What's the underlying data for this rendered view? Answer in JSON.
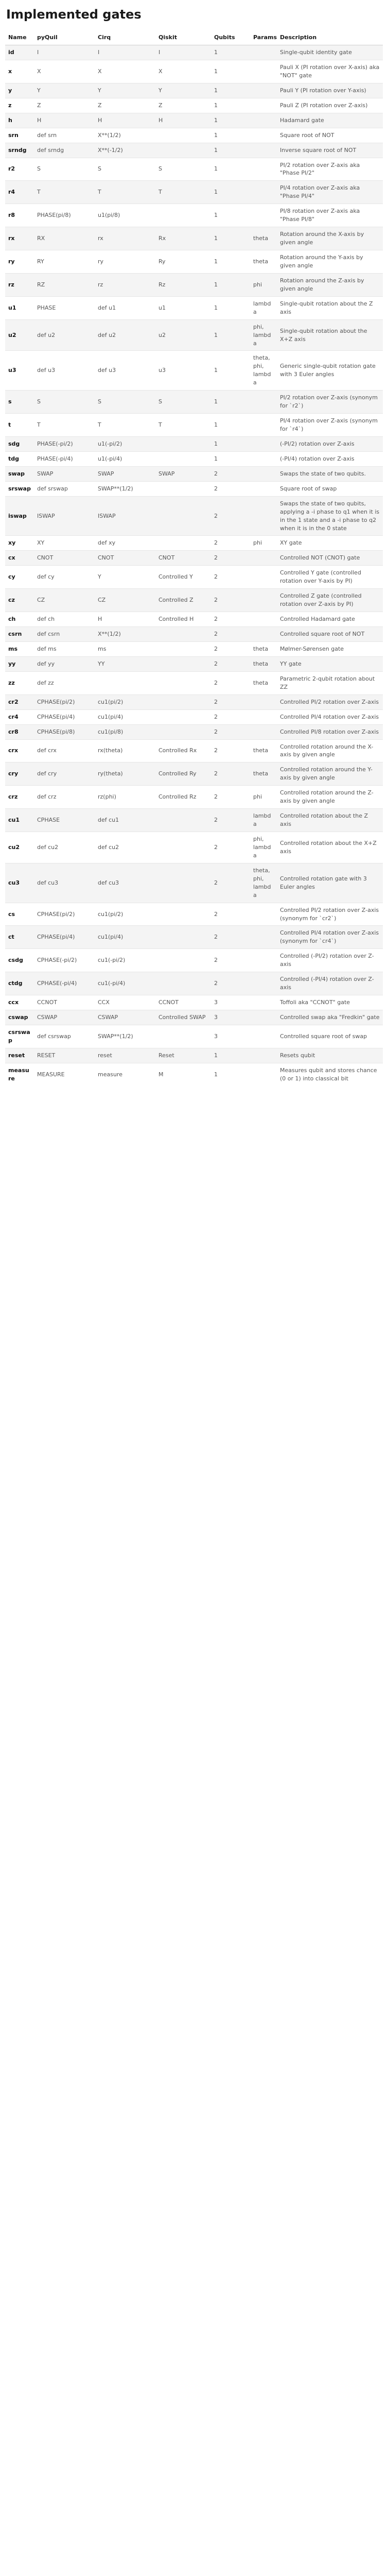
{
  "title": "Implemented gates",
  "headers": [
    "Name",
    "pyQuil",
    "Cirq",
    "Qiskit",
    "Qubits",
    "Params",
    "Description"
  ],
  "rows": [
    {
      "name": "id",
      "pyquil": "I",
      "cirq": "I",
      "qiskit": "I",
      "qubits": "1",
      "params": "",
      "desc": "Single-qubit identity gate"
    },
    {
      "name": "x",
      "pyquil": "X",
      "cirq": "X",
      "qiskit": "X",
      "qubits": "1",
      "params": "",
      "desc": "Pauli X (PI rotation over X-axis) aka \"NOT\" gate"
    },
    {
      "name": "y",
      "pyquil": "Y",
      "cirq": "Y",
      "qiskit": "Y",
      "qubits": "1",
      "params": "",
      "desc": "Pauli Y (PI rotation over Y-axis)"
    },
    {
      "name": "z",
      "pyquil": "Z",
      "cirq": "Z",
      "qiskit": "Z",
      "qubits": "1",
      "params": "",
      "desc": "Pauli Z (PI rotation over Z-axis)"
    },
    {
      "name": "h",
      "pyquil": "H",
      "cirq": "H",
      "qiskit": "H",
      "qubits": "1",
      "params": "",
      "desc": "Hadamard gate"
    },
    {
      "name": "srn",
      "pyquil": "def srn",
      "cirq": "X**(1/2)",
      "qiskit": "",
      "qubits": "1",
      "params": "",
      "desc": "Square root of NOT"
    },
    {
      "name": "srndg",
      "pyquil": "def srndg",
      "cirq": "X**(-1/2)",
      "qiskit": "",
      "qubits": "1",
      "params": "",
      "desc": "Inverse square root of NOT"
    },
    {
      "name": "r2",
      "pyquil": "S",
      "cirq": "S",
      "qiskit": "S",
      "qubits": "1",
      "params": "",
      "desc": "PI/2 rotation over Z-axis aka \"Phase PI/2\""
    },
    {
      "name": "r4",
      "pyquil": "T",
      "cirq": "T",
      "qiskit": "T",
      "qubits": "1",
      "params": "",
      "desc": "PI/4 rotation over Z-axis aka \"Phase PI/4\""
    },
    {
      "name": "r8",
      "pyquil": "PHASE(pi/8)",
      "cirq": "u1(pi/8)",
      "qiskit": "",
      "qubits": "1",
      "params": "",
      "desc": "PI/8 rotation over Z-axis aka \"Phase PI/8\""
    },
    {
      "name": "rx",
      "pyquil": "RX",
      "cirq": "rx",
      "qiskit": "Rx",
      "qubits": "1",
      "params": "theta",
      "desc": "Rotation around the X-axis by given angle"
    },
    {
      "name": "ry",
      "pyquil": "RY",
      "cirq": "ry",
      "qiskit": "Ry",
      "qubits": "1",
      "params": "theta",
      "desc": "Rotation around the Y-axis by given angle"
    },
    {
      "name": "rz",
      "pyquil": "RZ",
      "cirq": "rz",
      "qiskit": "Rz",
      "qubits": "1",
      "params": "phi",
      "desc": "Rotation around the Z-axis by given angle"
    },
    {
      "name": "u1",
      "pyquil": "PHASE",
      "cirq": "def u1",
      "qiskit": "u1",
      "qubits": "1",
      "params": "lambda",
      "desc": "Single-qubit rotation about the Z axis"
    },
    {
      "name": "u2",
      "pyquil": "def u2",
      "cirq": "def u2",
      "qiskit": "u2",
      "qubits": "1",
      "params": "phi, lambda",
      "desc": "Single-qubit rotation about the X+Z axis"
    },
    {
      "name": "u3",
      "pyquil": "def u3",
      "cirq": "def u3",
      "qiskit": "u3",
      "qubits": "1",
      "params": "theta, phi, lambda",
      "desc": "Generic single-qubit rotation gate with 3 Euler angles"
    },
    {
      "name": "s",
      "pyquil": "S",
      "cirq": "S",
      "qiskit": "S",
      "qubits": "1",
      "params": "",
      "desc": "PI/2 rotation over Z-axis (synonym for `r2`)"
    },
    {
      "name": "t",
      "pyquil": "T",
      "cirq": "T",
      "qiskit": "T",
      "qubits": "1",
      "params": "",
      "desc": "PI/4 rotation over Z-axis (synonym for `r4`)"
    },
    {
      "name": "sdg",
      "pyquil": "PHASE(-pi/2)",
      "cirq": "u1(-pi/2)",
      "qiskit": "",
      "qubits": "1",
      "params": "",
      "desc": "(-PI/2) rotation over Z-axis"
    },
    {
      "name": "tdg",
      "pyquil": "PHASE(-pi/4)",
      "cirq": "u1(-pi/4)",
      "qiskit": "",
      "qubits": "1",
      "params": "",
      "desc": "(-PI/4) rotation over Z-axis"
    },
    {
      "name": "swap",
      "pyquil": "SWAP",
      "cirq": "SWAP",
      "qiskit": "SWAP",
      "qubits": "2",
      "params": "",
      "desc": "Swaps the state of two qubits."
    },
    {
      "name": "srswap",
      "pyquil": "def srswap",
      "cirq": "SWAP**(1/2)",
      "qiskit": "",
      "qubits": "2",
      "params": "",
      "desc": "Square root of swap"
    },
    {
      "name": "iswap",
      "pyquil": "ISWAP",
      "cirq": "ISWAP",
      "qiskit": "",
      "qubits": "2",
      "params": "",
      "desc": "Swaps the state of two qubits, applying a -i phase to q1 when it is in the 1 state and a -i phase to q2 when it is in the 0 state"
    },
    {
      "name": "xy",
      "pyquil": "XY",
      "cirq": "def xy",
      "qiskit": "",
      "qubits": "2",
      "params": "phi",
      "desc": "XY gate"
    },
    {
      "name": "cx",
      "pyquil": "CNOT",
      "cirq": "CNOT",
      "qiskit": "CNOT",
      "qubits": "2",
      "params": "",
      "desc": "Controlled NOT (CNOT) gate"
    },
    {
      "name": "cy",
      "pyquil": "def cy",
      "cirq": "Y",
      "qiskit": "Controlled Y",
      "qubits": "2",
      "params": "",
      "desc": "Controlled Y gate (controlled rotation over Y-axis by PI)"
    },
    {
      "name": "cz",
      "pyquil": "CZ",
      "cirq": "CZ",
      "qiskit": "Controlled Z",
      "qubits": "2",
      "params": "",
      "desc": "Controlled Z gate (controlled rotation over Z-axis by PI)"
    },
    {
      "name": "ch",
      "pyquil": "def ch",
      "cirq": "H",
      "qiskit": "Controlled H",
      "qubits": "2",
      "params": "",
      "desc": "Controlled Hadamard gate"
    },
    {
      "name": "csrn",
      "pyquil": "def csrn",
      "cirq": "X**(1/2)",
      "qiskit": "",
      "qubits": "2",
      "params": "",
      "desc": "Controlled square root of NOT"
    },
    {
      "name": "ms",
      "pyquil": "def ms",
      "cirq": "ms",
      "qiskit": "",
      "qubits": "2",
      "params": "theta",
      "desc": "Mølmer-Sørensen gate"
    },
    {
      "name": "yy",
      "pyquil": "def yy",
      "cirq": "YY",
      "qiskit": "",
      "qubits": "2",
      "params": "theta",
      "desc": "YY gate"
    },
    {
      "name": "zz",
      "pyquil": "def zz",
      "cirq": "",
      "qiskit": "",
      "qubits": "2",
      "params": "theta",
      "desc": "Parametric 2-qubit rotation about ZZ"
    },
    {
      "name": "cr2",
      "pyquil": "CPHASE(pi/2)",
      "cirq": "cu1(pi/2)",
      "qiskit": "",
      "qubits": "2",
      "params": "",
      "desc": "Controlled PI/2 rotation over Z-axis"
    },
    {
      "name": "cr4",
      "pyquil": "CPHASE(pi/4)",
      "cirq": "cu1(pi/4)",
      "qiskit": "",
      "qubits": "2",
      "params": "",
      "desc": "Controlled PI/4 rotation over Z-axis"
    },
    {
      "name": "cr8",
      "pyquil": "CPHASE(pi/8)",
      "cirq": "cu1(pi/8)",
      "qiskit": "",
      "qubits": "2",
      "params": "",
      "desc": "Controlled PI/8 rotation over Z-axis"
    },
    {
      "name": "crx",
      "pyquil": "def crx",
      "cirq": "rx(theta)",
      "qiskit": "Controlled Rx",
      "qubits": "2",
      "params": "theta",
      "desc": "Controlled rotation around the X-axis by given angle"
    },
    {
      "name": "cry",
      "pyquil": "def cry",
      "cirq": "ry(theta)",
      "qiskit": "Controlled Ry",
      "qubits": "2",
      "params": "theta",
      "desc": "Controlled rotation around the Y-axis by given angle"
    },
    {
      "name": "crz",
      "pyquil": "def crz",
      "cirq": "rz(phi)",
      "qiskit": "Controlled Rz",
      "qubits": "2",
      "params": "phi",
      "desc": "Controlled rotation around the Z-axis by given angle"
    },
    {
      "name": "cu1",
      "pyquil": "CPHASE",
      "cirq": "def cu1",
      "qiskit": "",
      "qubits": "2",
      "params": "lambda",
      "desc": "Controlled rotation about the Z axis"
    },
    {
      "name": "cu2",
      "pyquil": "def cu2",
      "cirq": "def cu2",
      "qiskit": "",
      "qubits": "2",
      "params": "phi, lambda",
      "desc": "Controlled rotation about the X+Z axis"
    },
    {
      "name": "cu3",
      "pyquil": "def cu3",
      "cirq": "def cu3",
      "qiskit": "",
      "qubits": "2",
      "params": "theta, phi, lambda",
      "desc": "Controlled rotation gate with 3 Euler angles"
    },
    {
      "name": "cs",
      "pyquil": "CPHASE(pi/2)",
      "cirq": "cu1(pi/2)",
      "qiskit": "",
      "qubits": "2",
      "params": "",
      "desc": "Controlled PI/2 rotation over Z-axis (synonym for `cr2`)"
    },
    {
      "name": "ct",
      "pyquil": "CPHASE(pi/4)",
      "cirq": "cu1(pi/4)",
      "qiskit": "",
      "qubits": "2",
      "params": "",
      "desc": "Controlled PI/4 rotation over Z-axis (synonym for `cr4`)"
    },
    {
      "name": "csdg",
      "pyquil": "CPHASE(-pi/2)",
      "cirq": "cu1(-pi/2)",
      "qiskit": "",
      "qubits": "2",
      "params": "",
      "desc": "Controlled (-PI/2) rotation over Z-axis"
    },
    {
      "name": "ctdg",
      "pyquil": "CPHASE(-pi/4)",
      "cirq": "cu1(-pi/4)",
      "qiskit": "",
      "qubits": "2",
      "params": "",
      "desc": "Controlled (-PI/4) rotation over Z-axis"
    },
    {
      "name": "ccx",
      "pyquil": "CCNOT",
      "cirq": "CCX",
      "qiskit": "CCNOT",
      "qubits": "3",
      "params": "",
      "desc": "Toffoli aka \"CCNOT\" gate"
    },
    {
      "name": "cswap",
      "pyquil": "CSWAP",
      "cirq": "CSWAP",
      "qiskit": "Controlled SWAP",
      "qubits": "3",
      "params": "",
      "desc": "Controlled swap aka \"Fredkin\" gate"
    },
    {
      "name": "csrswap",
      "pyquil": "def csrswap",
      "cirq": "SWAP**(1/2)",
      "qiskit": "",
      "qubits": "3",
      "params": "",
      "desc": "Controlled square root of swap"
    },
    {
      "name": "reset",
      "pyquil": "RESET",
      "cirq": "reset",
      "qiskit": "Reset",
      "qubits": "1",
      "params": "",
      "desc": "Resets qubit"
    },
    {
      "name": "measure",
      "pyquil": "MEASURE",
      "cirq": "measure",
      "qiskit": "M",
      "qubits": "1",
      "params": "",
      "desc": "Measures qubit and stores chance (0 or 1) into classical bit"
    }
  ]
}
